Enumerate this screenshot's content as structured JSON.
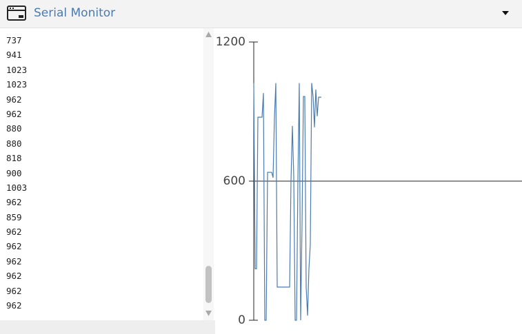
{
  "header": {
    "title": "Serial Monitor"
  },
  "monitor": {
    "lines": [
      "737",
      "941",
      "1023",
      "1023",
      "962",
      "962",
      "880",
      "880",
      "818",
      "900",
      "1003",
      "962",
      "859",
      "962",
      "962",
      "962",
      "962",
      "962",
      "962"
    ]
  },
  "chart_data": {
    "type": "line",
    "ylim": [
      0,
      1200
    ],
    "yticks": [
      0,
      600,
      1200
    ],
    "hline": 600,
    "series": [
      {
        "color": "#4a7bb0",
        "values": [
          1023,
          222,
          222,
          876,
          876,
          876,
          876,
          980,
          0,
          0,
          638,
          638,
          638,
          638,
          615,
          876,
          1023,
          143,
          143,
          143,
          143,
          143,
          143,
          143,
          143,
          143,
          143,
          600,
          838,
          620,
          0,
          0,
          600,
          1023,
          0,
          416,
          965,
          965,
          143,
          20,
          222,
          327,
          1023,
          965,
          832,
          995,
          880,
          962,
          962,
          962
        ]
      }
    ]
  }
}
